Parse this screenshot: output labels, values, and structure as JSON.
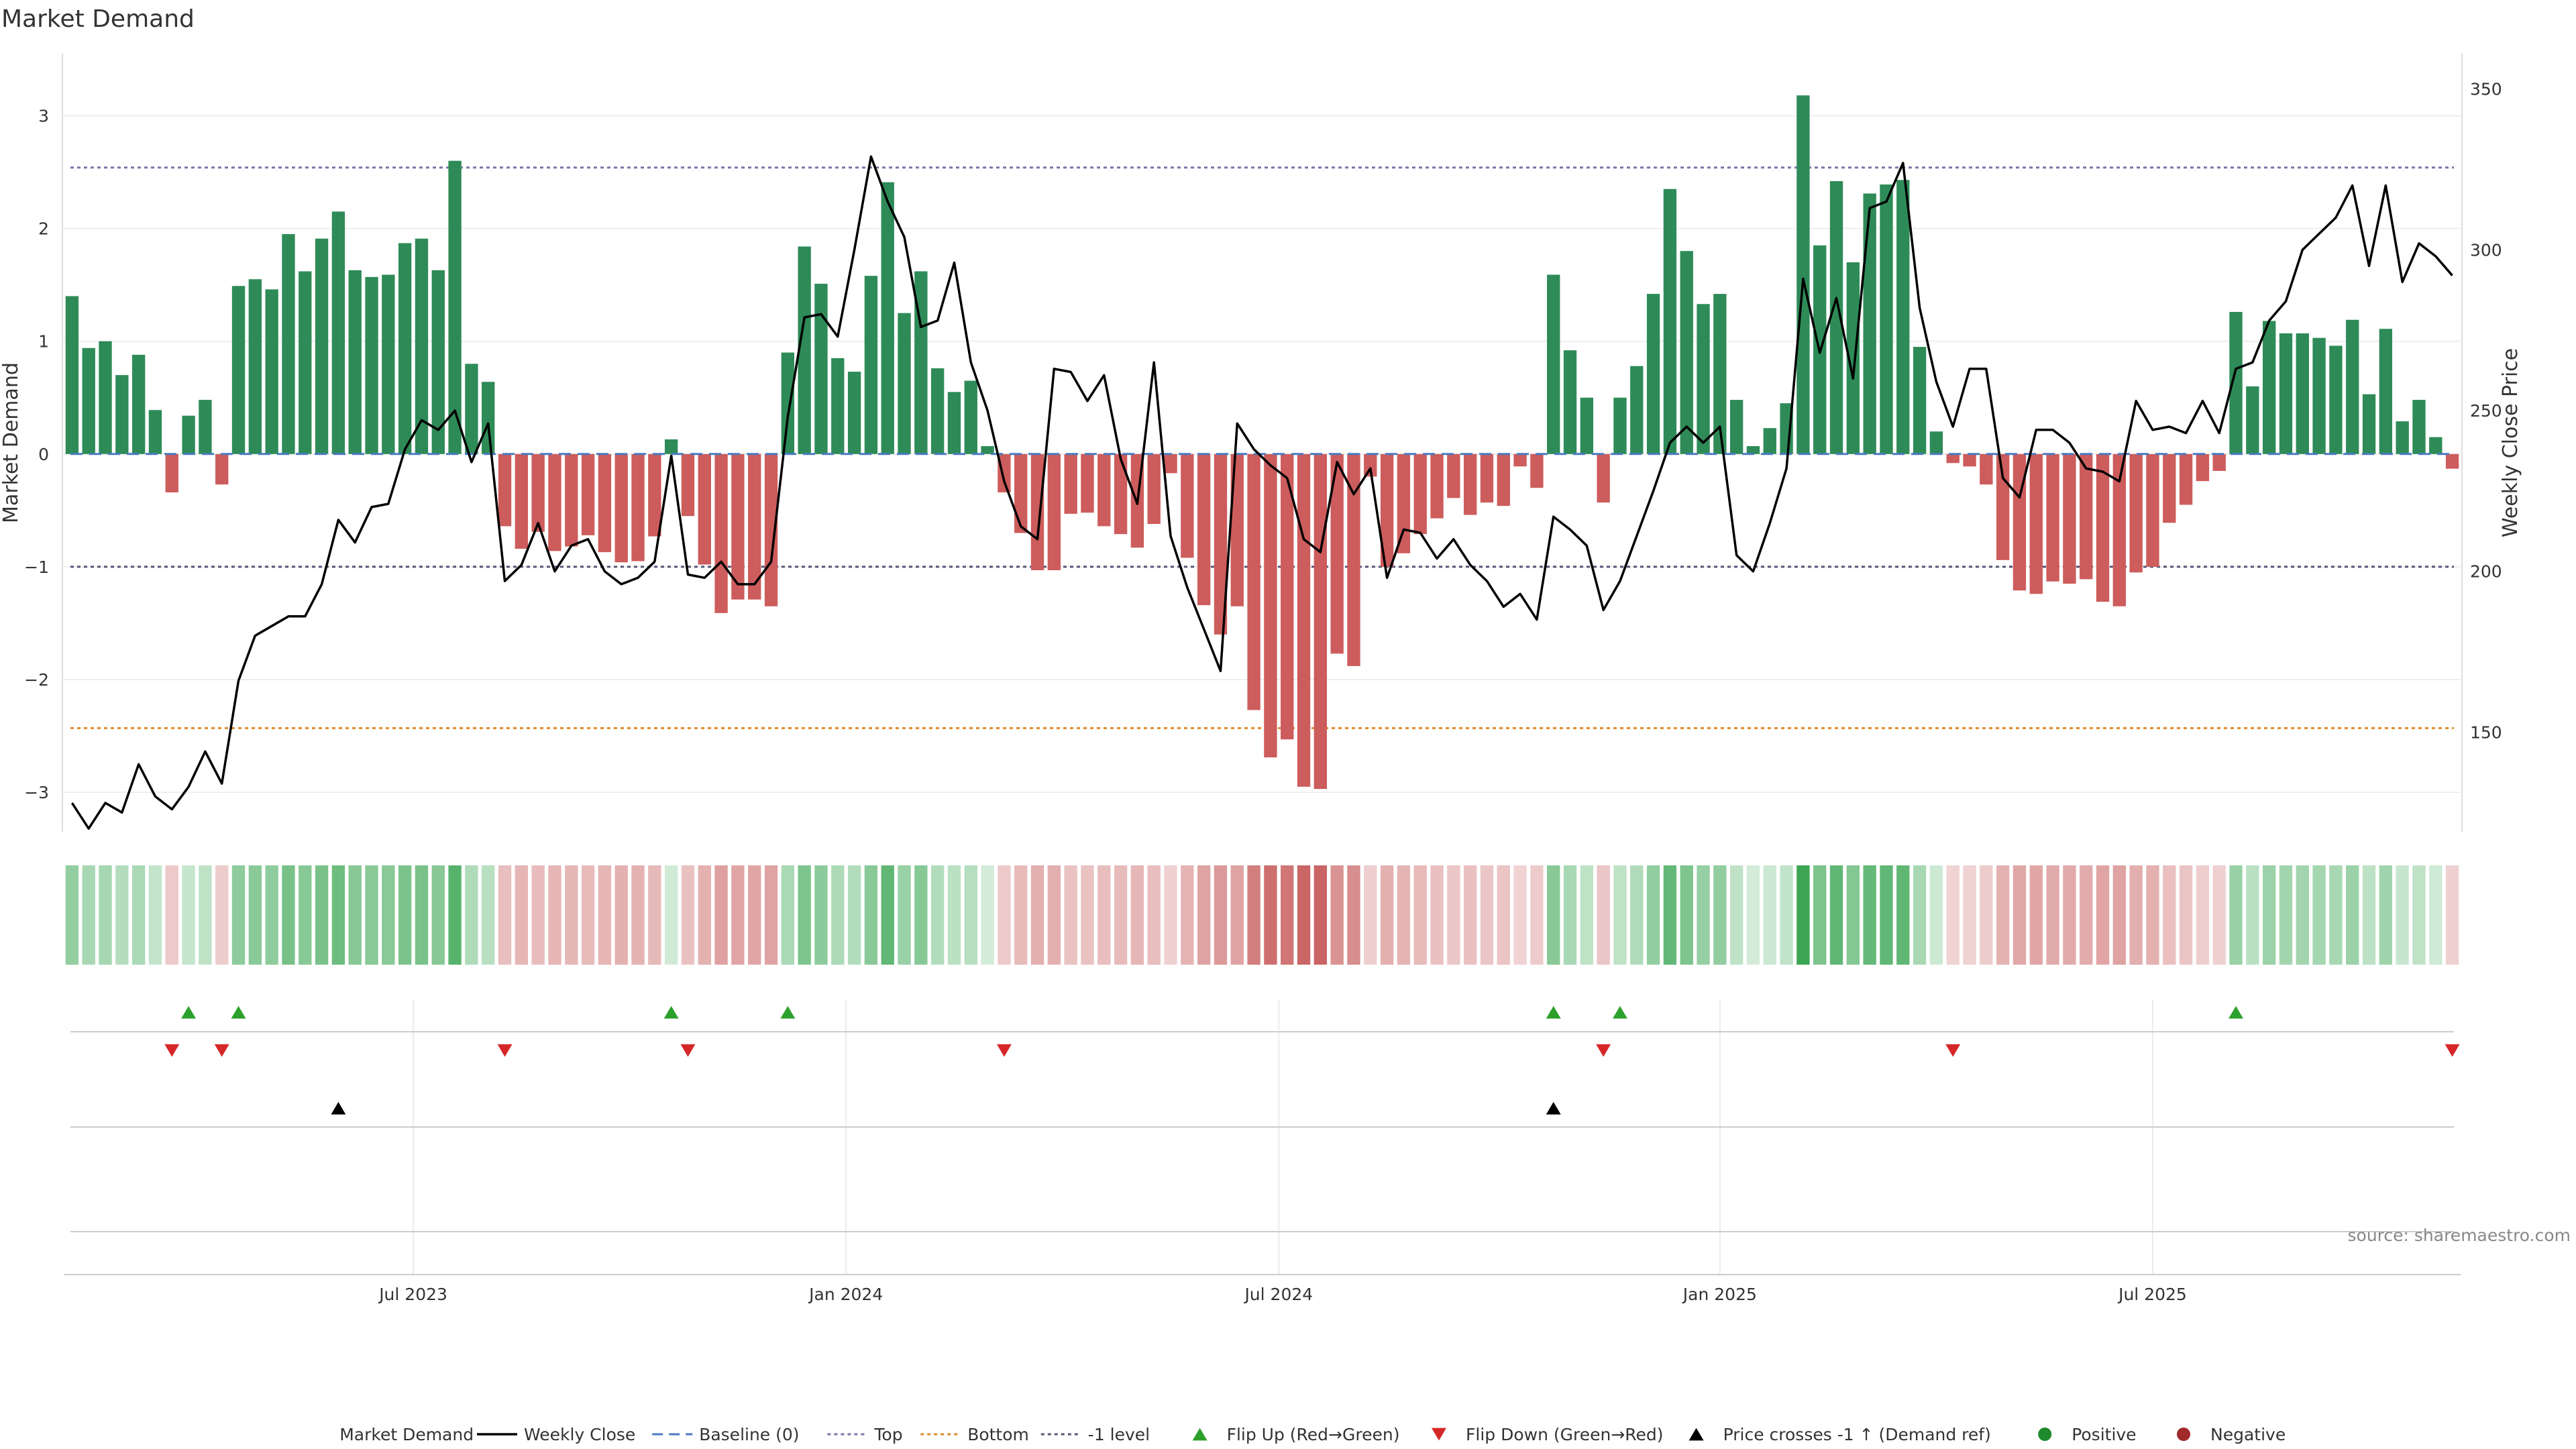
{
  "chart_data": {
    "type": "bar",
    "title": "Market Demand",
    "ylabel_left": "Market Demand",
    "ylabel_right": "Weekly Close Price",
    "ylim_left": [
      -3.35,
      3.55
    ],
    "yticks_left": [
      3,
      2,
      1,
      0,
      -1,
      -2,
      -3
    ],
    "yticks_left_labels": [
      "3",
      "2",
      "1",
      "0",
      "−1",
      "−2",
      "−3"
    ],
    "ylim_right": [
      119,
      361
    ],
    "yticks_right": [
      350,
      300,
      250,
      200,
      150
    ],
    "yticks_right_labels": [
      "350",
      "300",
      "250",
      "200",
      "150"
    ],
    "x_weeks_start_to_end": [
      "2023-03-05",
      "2025-10-05"
    ],
    "week_count": 144,
    "x_ticks": [
      {
        "label": "Jul 2023",
        "week": 21
      },
      {
        "label": "Jan 2024",
        "week": 47
      },
      {
        "label": "Jul 2024",
        "week": 73
      },
      {
        "label": "Jan 2025",
        "week": 99.5
      },
      {
        "label": "Jul 2025",
        "week": 125.5
      }
    ],
    "series": [
      {
        "name": "Market Demand",
        "kind": "bar",
        "positive_color": "#2e8b57",
        "negative_color": "#cd5c5c",
        "values": [
          1.4,
          0.94,
          1.0,
          0.7,
          0.88,
          0.39,
          -0.34,
          0.34,
          0.48,
          -0.27,
          1.49,
          1.55,
          1.46,
          1.95,
          1.62,
          1.91,
          2.15,
          1.63,
          1.57,
          1.59,
          1.87,
          1.91,
          1.63,
          2.6,
          0.8,
          0.64,
          -0.64,
          -0.84,
          -0.69,
          -0.86,
          -0.82,
          -0.72,
          -0.87,
          -0.96,
          -0.95,
          -0.73,
          0.13,
          -0.55,
          -0.98,
          -1.41,
          -1.29,
          -1.29,
          -1.35,
          0.9,
          1.84,
          1.51,
          0.85,
          0.73,
          1.58,
          2.41,
          1.25,
          1.62,
          0.76,
          0.55,
          0.65,
          0.07,
          -0.34,
          -0.7,
          -1.03,
          -1.03,
          -0.53,
          -0.52,
          -0.64,
          -0.71,
          -0.83,
          -0.62,
          -0.17,
          -0.92,
          -1.34,
          -1.6,
          -1.35,
          -2.27,
          -2.69,
          -2.53,
          -2.95,
          -2.97,
          -1.77,
          -1.88,
          -0.2,
          -1.0,
          -0.88,
          -0.71,
          -0.57,
          -0.39,
          -0.54,
          -0.43,
          -0.46,
          -0.11,
          -0.3,
          1.59,
          0.92,
          0.5,
          -0.43,
          0.5,
          0.78,
          1.42,
          2.35,
          1.8,
          1.33,
          1.42,
          0.48,
          0.07,
          0.23,
          0.45,
          3.18,
          1.85,
          2.42,
          1.7,
          2.31,
          2.39,
          2.43,
          0.95,
          0.2,
          -0.08,
          -0.11,
          -0.27,
          -0.94,
          -1.21,
          -1.24,
          -1.13,
          -1.15,
          -1.11,
          -1.31,
          -1.35,
          -1.05,
          -1.0,
          -0.61,
          -0.45,
          -0.24,
          -0.15,
          1.26,
          0.6,
          1.18,
          1.07,
          1.07,
          1.03,
          0.96,
          1.19,
          0.53,
          1.11,
          0.29,
          0.48,
          0.15,
          -0.13
        ]
      },
      {
        "name": "Weekly Close",
        "kind": "line",
        "axis": "right",
        "color": "#000000",
        "values": [
          128,
          120,
          128,
          125,
          140,
          130,
          126,
          133,
          144,
          134,
          166,
          180,
          183,
          186,
          186,
          196,
          216,
          209,
          220,
          221,
          238,
          247,
          244,
          250,
          234,
          246,
          197,
          202,
          215,
          200,
          208,
          210,
          200,
          196,
          198,
          203,
          236,
          199,
          198,
          203,
          196,
          196,
          203,
          248,
          279,
          280,
          273,
          300,
          329,
          315,
          304,
          276,
          278,
          296,
          265,
          250,
          228,
          214,
          210,
          263,
          262,
          253,
          261,
          235,
          221,
          265,
          211,
          195,
          182,
          169,
          246,
          238,
          233,
          229,
          210,
          206,
          234,
          224,
          232,
          198,
          213,
          212,
          204,
          210,
          202,
          197,
          189,
          193,
          185,
          217,
          213,
          208,
          188,
          197,
          211,
          225,
          240,
          245,
          240,
          245,
          205,
          200,
          215,
          232,
          291,
          268,
          285,
          260,
          313,
          315,
          327,
          282,
          259,
          245,
          263,
          263,
          229,
          223,
          244,
          244,
          240,
          232,
          231,
          228,
          253,
          244,
          245,
          243,
          253,
          243,
          263,
          265,
          278,
          284,
          300,
          305,
          310,
          320,
          295,
          320,
          290,
          302,
          298,
          292
        ]
      },
      {
        "name": "Baseline (0)",
        "kind": "hline",
        "value": 0,
        "color": "#4a7ac0",
        "style": "dashed"
      },
      {
        "name": "Top",
        "kind": "hline",
        "value": 2.54,
        "color": "#7777aa",
        "style": "dotted"
      },
      {
        "name": "Bottom",
        "kind": "hline",
        "value": -2.43,
        "color": "#e08a2a",
        "style": "dotted"
      },
      {
        "name": "-1 level",
        "kind": "hline",
        "value": -1,
        "color": "#555577",
        "style": "dotted"
      },
      {
        "name": "Flip Up (Red→Green)",
        "kind": "marker",
        "symbol": "triangle-up",
        "color": "#2ca02c",
        "weeks": [
          7,
          10,
          36,
          43,
          89,
          93,
          130
        ]
      },
      {
        "name": "Flip Down (Green→Red)",
        "kind": "marker",
        "symbol": "triangle-down",
        "color": "#d62728",
        "weeks": [
          6,
          9,
          26,
          37,
          56,
          92,
          113,
          143
        ]
      },
      {
        "name": "Price crosses -1 ↑ (Demand ref)",
        "kind": "marker",
        "symbol": "triangle-up",
        "color": "#000000",
        "weeks": [
          16,
          89
        ]
      },
      {
        "name": "Positive",
        "kind": "legend-only",
        "symbol": "circle",
        "color": "#1e8a2e"
      },
      {
        "name": "Negative",
        "kind": "legend-only",
        "symbol": "circle",
        "color": "#a12a2a"
      }
    ],
    "grid": true,
    "legend_position": "bottom-center",
    "source": "source: sharemaestro.com"
  }
}
